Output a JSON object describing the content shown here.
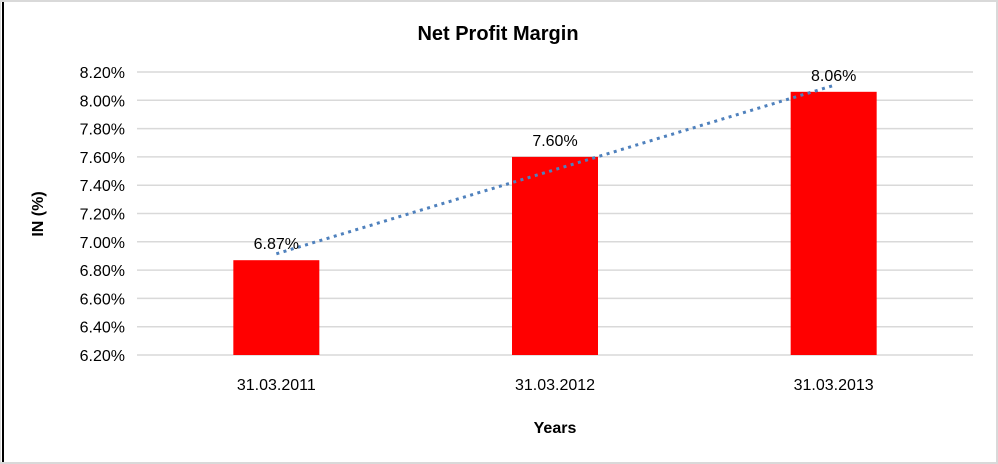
{
  "chart_data": {
    "type": "bar",
    "title": "Net Profit Margin",
    "xlabel": "Years",
    "ylabel": "IN (%)",
    "categories": [
      "31.03.2011",
      "31.03.2012",
      "31.03.2013"
    ],
    "values": [
      6.87,
      7.6,
      8.06
    ],
    "data_labels": [
      "6.87%",
      "7.60%",
      "8.06%"
    ],
    "ylim": [
      6.2,
      8.2
    ],
    "y_tick_step": 0.2,
    "y_ticks": [
      6.2,
      6.4,
      6.6,
      6.8,
      7.0,
      7.2,
      7.4,
      7.6,
      7.8,
      8.0,
      8.2
    ],
    "y_tick_labels": [
      "6.20%",
      "6.40%",
      "6.60%",
      "6.80%",
      "7.00%",
      "7.20%",
      "7.40%",
      "7.60%",
      "7.80%",
      "8.00%",
      "8.20%"
    ],
    "grid": "horizontal",
    "legend": "none",
    "bar_color": "#ff0000",
    "gridline_color": "#d9d9d9",
    "axis_line_color": "#d9d9d9",
    "trendline": {
      "style": "dotted",
      "color": "#4f81bd"
    }
  },
  "frame": {
    "border_color": "#d9d9d9",
    "left_edge_color": "#000000"
  }
}
